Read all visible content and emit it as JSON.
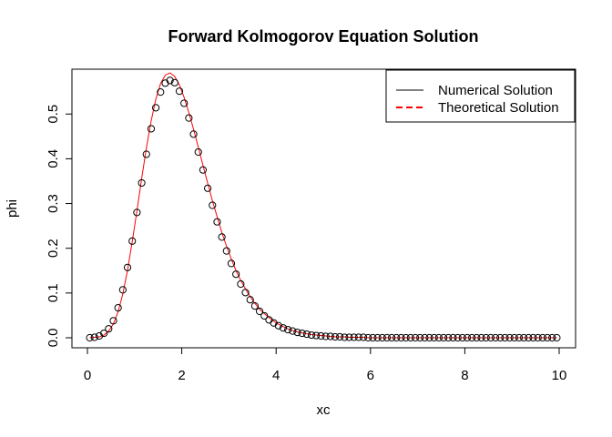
{
  "chart_data": {
    "type": "scatter",
    "title": "Forward Kolmogorov Equation Solution",
    "xlabel": "xc",
    "ylabel": "phi",
    "xlim": [
      0,
      10
    ],
    "ylim": [
      0,
      0.59
    ],
    "xticks": [
      "0",
      "2",
      "4",
      "6",
      "8",
      "10"
    ],
    "yticks": [
      "0.0",
      "0.1",
      "0.2",
      "0.3",
      "0.4",
      "0.5"
    ],
    "grid": false,
    "legend_position": "top-right",
    "series": [
      {
        "name": "Numerical Solution",
        "style": "points",
        "color": "#000000",
        "x": [
          0.05,
          0.15,
          0.25,
          0.35,
          0.45,
          0.55,
          0.65,
          0.75,
          0.85,
          0.95,
          1.05,
          1.15,
          1.25,
          1.35,
          1.45,
          1.55,
          1.65,
          1.75,
          1.85,
          1.95,
          2.05,
          2.15,
          2.25,
          2.35,
          2.45,
          2.55,
          2.65,
          2.75,
          2.85,
          2.95,
          3.05,
          3.15,
          3.25,
          3.35,
          3.45,
          3.55,
          3.65,
          3.75,
          3.85,
          3.95,
          4.05,
          4.15,
          4.25,
          4.35,
          4.45,
          4.55,
          4.65,
          4.75,
          4.85,
          4.95,
          5.05,
          5.15,
          5.25,
          5.35,
          5.45,
          5.55,
          5.65,
          5.75,
          5.85,
          5.95,
          6.05,
          6.15,
          6.25,
          6.35,
          6.45,
          6.55,
          6.65,
          6.75,
          6.85,
          6.95,
          7.05,
          7.15,
          7.25,
          7.35,
          7.45,
          7.55,
          7.65,
          7.75,
          7.85,
          7.95,
          8.05,
          8.15,
          8.25,
          8.35,
          8.45,
          8.55,
          8.65,
          8.75,
          8.85,
          8.95,
          9.05,
          9.15,
          9.25,
          9.35,
          9.45,
          9.55,
          9.65,
          9.75,
          9.85,
          9.95
        ],
        "y": [
          0.0,
          0.001,
          0.004,
          0.01,
          0.02,
          0.038,
          0.067,
          0.107,
          0.157,
          0.216,
          0.28,
          0.346,
          0.41,
          0.467,
          0.514,
          0.549,
          0.569,
          0.575,
          0.57,
          0.551,
          0.524,
          0.491,
          0.455,
          0.415,
          0.375,
          0.334,
          0.296,
          0.259,
          0.225,
          0.194,
          0.166,
          0.142,
          0.12,
          0.101,
          0.085,
          0.071,
          0.059,
          0.049,
          0.04,
          0.033,
          0.027,
          0.022,
          0.018,
          0.015,
          0.012,
          0.01,
          0.008,
          0.006,
          0.005,
          0.004,
          0.003,
          0.003,
          0.002,
          0.002,
          0.001,
          0.001,
          0.001,
          0.001,
          0.001,
          0.0,
          0.0,
          0.0,
          0.0,
          0.0,
          0.0,
          0.0,
          0.0,
          0.0,
          0.0,
          0.0,
          0.0,
          0.0,
          0.0,
          0.0,
          0.0,
          0.0,
          0.0,
          0.0,
          0.0,
          0.0,
          0.0,
          0.0,
          0.0,
          0.0,
          0.0,
          0.0,
          0.0,
          0.0,
          0.0,
          0.0,
          0.0,
          0.0,
          0.0,
          0.0,
          0.0,
          0.0,
          0.0,
          0.0,
          0.0,
          0.0
        ]
      },
      {
        "name": "Theoretical Solution",
        "style": "line",
        "color": "#ff0000",
        "x": [
          0.05,
          0.15,
          0.25,
          0.35,
          0.45,
          0.55,
          0.65,
          0.75,
          0.85,
          0.95,
          1.05,
          1.15,
          1.25,
          1.35,
          1.45,
          1.55,
          1.65,
          1.75,
          1.85,
          1.95,
          2.05,
          2.15,
          2.25,
          2.35,
          2.45,
          2.55,
          2.65,
          2.75,
          2.85,
          2.95,
          3.05,
          3.15,
          3.25,
          3.35,
          3.45,
          3.55,
          3.65,
          3.75,
          3.85,
          3.95,
          4.05,
          4.15,
          4.25,
          4.35,
          4.45,
          4.55,
          4.65,
          4.75,
          4.85,
          4.95,
          5.05,
          5.15,
          5.25,
          5.35,
          5.45,
          5.55,
          5.65,
          5.75,
          5.85,
          5.95,
          6.05,
          6.15,
          6.25,
          6.35,
          6.45,
          6.55,
          6.65,
          6.75,
          6.85,
          6.95,
          7.05,
          7.15,
          7.25,
          7.35,
          7.45,
          7.55,
          7.65,
          7.75,
          7.85,
          7.95,
          8.05,
          8.15,
          8.25,
          8.35,
          8.45,
          8.55,
          8.65,
          8.75,
          8.85,
          8.95,
          9.05,
          9.15,
          9.25,
          9.35,
          9.45,
          9.55,
          9.65,
          9.75,
          9.85,
          9.95
        ],
        "y": [
          0.0,
          0.001,
          0.002,
          0.006,
          0.015,
          0.031,
          0.058,
          0.098,
          0.151,
          0.215,
          0.284,
          0.356,
          0.424,
          0.484,
          0.533,
          0.568,
          0.587,
          0.592,
          0.584,
          0.565,
          0.537,
          0.503,
          0.466,
          0.426,
          0.385,
          0.345,
          0.306,
          0.27,
          0.235,
          0.204,
          0.176,
          0.15,
          0.128,
          0.109,
          0.092,
          0.077,
          0.064,
          0.054,
          0.045,
          0.037,
          0.03,
          0.025,
          0.02,
          0.016,
          0.013,
          0.011,
          0.009,
          0.007,
          0.006,
          0.005,
          0.004,
          0.003,
          0.002,
          0.002,
          0.002,
          0.001,
          0.001,
          0.001,
          0.001,
          0.0,
          0.0,
          0.0,
          0.0,
          0.0,
          0.0,
          0.0,
          0.0,
          0.0,
          0.0,
          0.0,
          0.0,
          0.0,
          0.0,
          0.0,
          0.0,
          0.0,
          0.0,
          0.0,
          0.0,
          0.0,
          0.0,
          0.0,
          0.0,
          0.0,
          0.0,
          0.0,
          0.0,
          0.0,
          0.0,
          0.0,
          0.0,
          0.0,
          0.0,
          0.0,
          0.0,
          0.0,
          0.0,
          0.0,
          0.0,
          0.0
        ]
      }
    ]
  }
}
